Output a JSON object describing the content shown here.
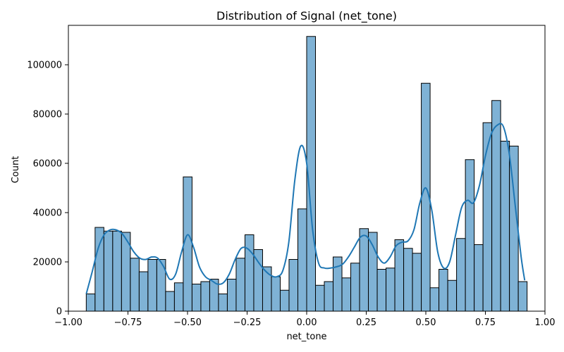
{
  "chart_data": {
    "type": "bar",
    "title": "Distribution of Signal (net_tone)",
    "xlabel": "net_tone",
    "ylabel": "Count",
    "xlim": [
      -1.0,
      1.0
    ],
    "ylim": [
      0,
      116000
    ],
    "x_ticks": [
      -1.0,
      -0.75,
      -0.5,
      -0.25,
      0.0,
      0.25,
      0.5,
      0.75,
      1.0
    ],
    "x_tick_labels": [
      "−1.00",
      "−0.75",
      "−0.50",
      "−0.25",
      "0.00",
      "0.25",
      "0.50",
      "0.75",
      "1.00"
    ],
    "y_ticks": [
      0,
      20000,
      40000,
      60000,
      80000,
      100000
    ],
    "y_tick_labels": [
      "0",
      "20000",
      "40000",
      "60000",
      "80000",
      "100000"
    ],
    "grid": false,
    "bin_start": -0.925,
    "bin_width": 0.037,
    "values": [
      7000,
      34000,
      32500,
      32500,
      32000,
      21500,
      16000,
      21000,
      21000,
      8000,
      11500,
      54500,
      11000,
      12000,
      13000,
      7000,
      13000,
      21500,
      31000,
      25000,
      18000,
      14000,
      8500,
      21000,
      41500,
      111500,
      10500,
      12000,
      22000,
      13500,
      19500,
      33500,
      32000,
      17000,
      17500,
      29000,
      25500,
      23500,
      92500,
      9500,
      17000,
      12500,
      29500,
      61500,
      27000,
      76500,
      85500,
      69000,
      67000,
      12000
    ],
    "kde": {
      "x": [
        -0.925,
        -0.9,
        -0.875,
        -0.85,
        -0.825,
        -0.8,
        -0.775,
        -0.75,
        -0.725,
        -0.7,
        -0.675,
        -0.65,
        -0.625,
        -0.6,
        -0.575,
        -0.55,
        -0.525,
        -0.5,
        -0.475,
        -0.45,
        -0.425,
        -0.4,
        -0.375,
        -0.35,
        -0.325,
        -0.3,
        -0.275,
        -0.25,
        -0.225,
        -0.2,
        -0.175,
        -0.15,
        -0.125,
        -0.1,
        -0.075,
        -0.05,
        -0.025,
        0.0,
        0.025,
        0.05,
        0.075,
        0.1,
        0.125,
        0.15,
        0.175,
        0.2,
        0.225,
        0.25,
        0.275,
        0.3,
        0.325,
        0.35,
        0.375,
        0.4,
        0.425,
        0.45,
        0.475,
        0.5,
        0.525,
        0.55,
        0.575,
        0.6,
        0.625,
        0.65,
        0.675,
        0.7,
        0.725,
        0.75,
        0.775,
        0.8,
        0.825,
        0.85,
        0.875,
        0.9,
        0.915
      ],
      "y": [
        7000,
        16000,
        25500,
        31000,
        33000,
        33000,
        31500,
        28000,
        24000,
        21500,
        21000,
        22000,
        21500,
        18000,
        13000,
        15000,
        24000,
        31000,
        26000,
        18000,
        14000,
        12500,
        11000,
        11500,
        15000,
        21000,
        25500,
        25500,
        23000,
        19500,
        16500,
        14500,
        14000,
        16500,
        28000,
        53000,
        67000,
        60000,
        33000,
        19500,
        17500,
        17500,
        18000,
        19000,
        22000,
        26000,
        30000,
        30500,
        27000,
        22000,
        19500,
        22000,
        26500,
        28000,
        28500,
        33000,
        44000,
        50000,
        41000,
        24000,
        17500,
        20000,
        31000,
        42000,
        45000,
        44000,
        51000,
        63000,
        72000,
        75500,
        75000,
        64000,
        43000,
        22000,
        12500
      ]
    },
    "colors": {
      "bar_fill": "#7fb2d5",
      "bar_edge": "#000000",
      "kde_line": "#1f77b4"
    }
  }
}
